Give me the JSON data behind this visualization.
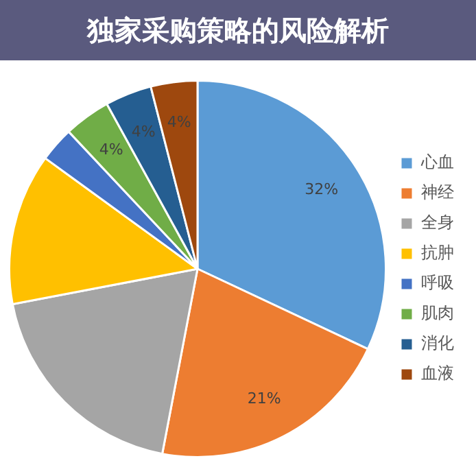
{
  "chart_data": {
    "type": "pie",
    "title": "独家采购策略的风险解析",
    "categories": [
      "心血",
      "神经",
      "全身",
      "抗肿",
      "呼吸",
      "肌肉",
      "消化",
      "血液"
    ],
    "values": [
      32,
      21,
      19,
      13,
      3,
      4,
      4,
      4
    ],
    "value_labels": [
      "32%",
      "21%",
      null,
      null,
      null,
      "4%",
      "4%",
      "4%"
    ],
    "colors": [
      "#5b9bd5",
      "#ed7d31",
      "#a5a5a5",
      "#ffc000",
      "#4472c4",
      "#70ad47",
      "#255e91",
      "#9e480e"
    ],
    "legend": "right"
  }
}
